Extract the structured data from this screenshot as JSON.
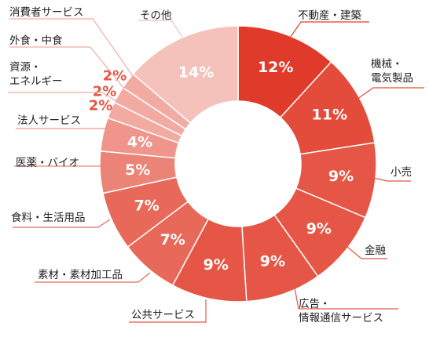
{
  "chart_data": {
    "type": "pie",
    "variant": "donut",
    "start_angle_deg": 0,
    "direction": "clockwise",
    "unit": "%",
    "slices": [
      {
        "label": "不動産・建築",
        "lines": [
          "不動産・建築"
        ],
        "value": 12,
        "display": "12%",
        "color": "#e03a2a",
        "line_color": "#e03a2a"
      },
      {
        "label": "機械・電気製品",
        "lines": [
          "機械・",
          "電気製品"
        ],
        "value": 11,
        "display": "11%",
        "color": "#e34b3b",
        "line_color": "#e34b3b"
      },
      {
        "label": "小売",
        "lines": [
          "小売"
        ],
        "value": 9,
        "display": "9%",
        "color": "#e55646",
        "line_color": "#e55646"
      },
      {
        "label": "金融",
        "lines": [
          "金融"
        ],
        "value": 9,
        "display": "9%",
        "color": "#e55646",
        "line_color": "#e55646"
      },
      {
        "label": "広告・情報通信サービス",
        "lines": [
          "広告・",
          "情報通信サービス"
        ],
        "value": 9,
        "display": "9%",
        "color": "#e55646",
        "line_color": "#e55646"
      },
      {
        "label": "公共サービス",
        "lines": [
          "公共サービス"
        ],
        "value": 9,
        "display": "9%",
        "color": "#e55646",
        "line_color": "#e55646"
      },
      {
        "label": "素材・素材加工品",
        "lines": [
          "素材・素材加工品"
        ],
        "value": 7,
        "display": "7%",
        "color": "#e8695a",
        "line_color": "#e8695a"
      },
      {
        "label": "食料・生活用品",
        "lines": [
          "食料・生活用品"
        ],
        "value": 7,
        "display": "7%",
        "color": "#e8695a",
        "line_color": "#e8695a"
      },
      {
        "label": "医薬・バイオ",
        "lines": [
          "医薬・バイオ"
        ],
        "value": 5,
        "display": "5%",
        "color": "#ec8377",
        "line_color": "#ec8377"
      },
      {
        "label": "法人サービス",
        "lines": [
          "法人サービス"
        ],
        "value": 4,
        "display": "4%",
        "color": "#ef958b",
        "line_color": "#ef958b"
      },
      {
        "label": "資源・エネルギー",
        "lines": [
          "資源・",
          "エネルギー"
        ],
        "value": 2,
        "display": "2%",
        "color": "#f2aba3",
        "line_color": "#f2aba3"
      },
      {
        "label": "外食・中食",
        "lines": [
          "外食・中食"
        ],
        "value": 2,
        "display": "2%",
        "color": "#f2aba3",
        "line_color": "#f2aba3"
      },
      {
        "label": "消費者サービス",
        "lines": [
          "消費者サービス"
        ],
        "value": 2,
        "display": "2%",
        "color": "#f2aba3",
        "line_color": "#f2aba3"
      },
      {
        "label": "その他",
        "lines": [
          "その他"
        ],
        "value": 14,
        "display": "14%",
        "color": "#f5c1bb",
        "line_color": "#f5c1bb"
      }
    ],
    "small_label_color": "#e55646"
  }
}
